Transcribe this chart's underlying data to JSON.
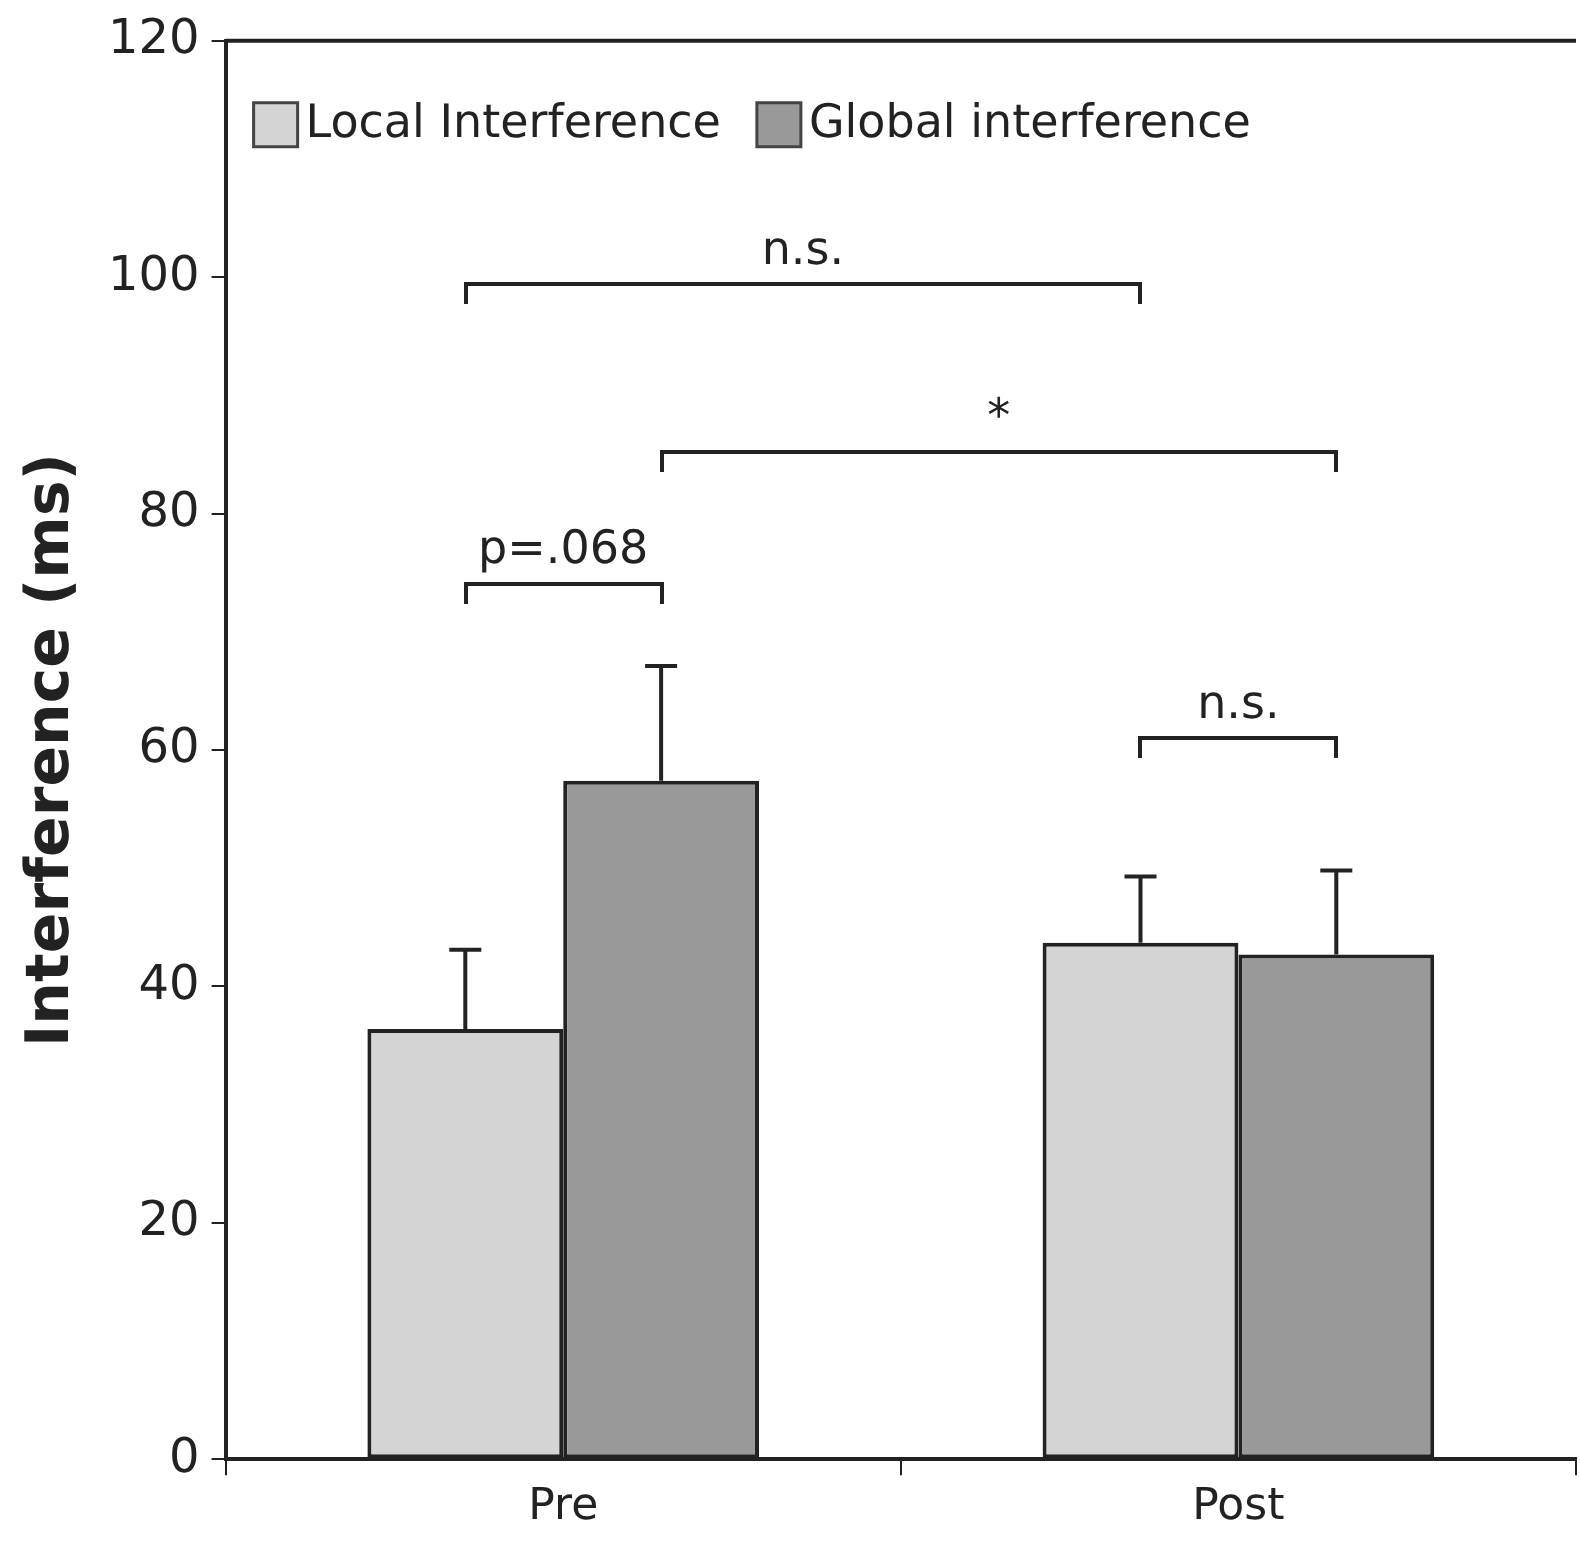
{
  "chart_data": {
    "type": "bar",
    "ylabel": "Interference (ms)",
    "categories": [
      "Pre",
      "Post"
    ],
    "series": [
      {
        "name": "Local Interference",
        "color": "#d4d4d4",
        "values": [
          36.4,
          43.7
        ],
        "errors": [
          [
            36.4,
            43.1
          ],
          [
            43.7,
            49.3
          ]
        ]
      },
      {
        "name": "Global interference",
        "color": "#999999",
        "values": [
          57.4,
          42.7
        ],
        "errors": [
          [
            57.4,
            67.1
          ],
          [
            42.7,
            49.8
          ]
        ]
      }
    ],
    "ylim": [
      0,
      120
    ],
    "yticks": [
      0,
      20,
      40,
      60,
      80,
      100,
      120
    ],
    "grid": false,
    "legend": "top left",
    "annotations": [
      "n.s.",
      "*",
      "p=.068",
      "n.s."
    ]
  }
}
